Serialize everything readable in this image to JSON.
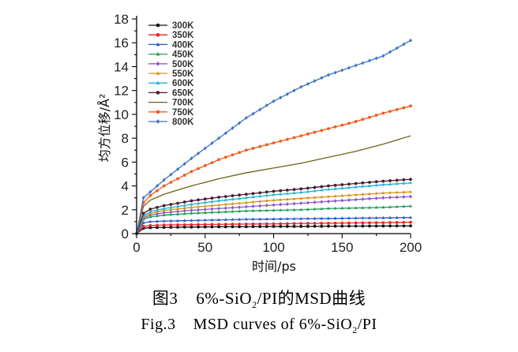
{
  "captions": {
    "cn_figure": "图3",
    "cn_text": "6%-SiO",
    "cn_sub": "2",
    "cn_text2": "/PI的MSD曲线",
    "en_figure": "Fig.3",
    "en_text": "MSD curves of 6%-SiO",
    "en_sub": "2",
    "en_text2": "/PI"
  },
  "chart_data": {
    "type": "line",
    "xlabel": "时间/ps",
    "ylabel": "均方位移/Å²",
    "xlim": [
      0,
      200
    ],
    "ylim": [
      0,
      18
    ],
    "xticks": [
      0,
      50,
      100,
      150,
      200
    ],
    "yticks": [
      0,
      2,
      4,
      6,
      8,
      10,
      12,
      14,
      16,
      18
    ],
    "x": [
      0,
      5,
      10,
      20,
      40,
      60,
      80,
      100,
      120,
      140,
      160,
      180,
      200
    ],
    "legend_position": "top-left",
    "series": [
      {
        "name": "300K",
        "color": "#111111",
        "marker": "circle",
        "values": [
          0,
          0.45,
          0.5,
          0.52,
          0.55,
          0.57,
          0.58,
          0.6,
          0.6,
          0.62,
          0.63,
          0.64,
          0.65
        ]
      },
      {
        "name": "350K",
        "color": "#e8262b",
        "marker": "circle",
        "values": [
          0,
          0.6,
          0.68,
          0.72,
          0.75,
          0.78,
          0.8,
          0.82,
          0.85,
          0.87,
          0.9,
          0.92,
          0.95
        ]
      },
      {
        "name": "400K",
        "color": "#2a57c9",
        "marker": "triangle",
        "values": [
          0,
          0.9,
          1.0,
          1.05,
          1.1,
          1.15,
          1.2,
          1.22,
          1.25,
          1.27,
          1.3,
          1.32,
          1.35
        ]
      },
      {
        "name": "450K",
        "color": "#1e9e55",
        "marker": "triangle",
        "values": [
          0,
          1.2,
          1.4,
          1.55,
          1.7,
          1.8,
          1.9,
          1.95,
          2.0,
          2.1,
          2.15,
          2.2,
          2.3
        ]
      },
      {
        "name": "500K",
        "color": "#8e57c7",
        "marker": "diamond",
        "values": [
          0,
          1.3,
          1.55,
          1.75,
          1.95,
          2.1,
          2.25,
          2.4,
          2.55,
          2.7,
          2.85,
          3.0,
          3.1
        ]
      },
      {
        "name": "550K",
        "color": "#d69218",
        "marker": "triangle",
        "values": [
          0,
          1.4,
          1.7,
          1.95,
          2.2,
          2.4,
          2.6,
          2.8,
          2.95,
          3.1,
          3.25,
          3.4,
          3.5
        ]
      },
      {
        "name": "600K",
        "color": "#19b6d8",
        "marker": "triangle",
        "values": [
          0,
          1.5,
          1.85,
          2.1,
          2.45,
          2.75,
          3.0,
          3.25,
          3.45,
          3.7,
          3.9,
          4.1,
          4.25
        ]
      },
      {
        "name": "650K",
        "color": "#4a1c2e",
        "marker": "circle",
        "values": [
          0,
          1.7,
          2.05,
          2.35,
          2.75,
          3.05,
          3.3,
          3.55,
          3.75,
          4.0,
          4.2,
          4.4,
          4.55
        ]
      },
      {
        "name": "700K",
        "color": "#6b6214",
        "marker": "none",
        "values": [
          0,
          2.3,
          2.8,
          3.3,
          4.0,
          4.6,
          5.1,
          5.5,
          5.9,
          6.4,
          6.9,
          7.5,
          8.2
        ]
      },
      {
        "name": "750K",
        "color": "#f25a1d",
        "marker": "circle",
        "values": [
          0,
          2.6,
          3.2,
          4.0,
          5.2,
          6.2,
          7.0,
          7.6,
          8.2,
          8.8,
          9.4,
          10.1,
          10.7
        ]
      },
      {
        "name": "800K",
        "color": "#3d72c2",
        "marker": "diamond",
        "values": [
          0,
          3.0,
          3.5,
          4.5,
          6.3,
          8.0,
          9.7,
          11.1,
          12.3,
          13.3,
          14.1,
          14.9,
          16.2
        ]
      }
    ]
  }
}
